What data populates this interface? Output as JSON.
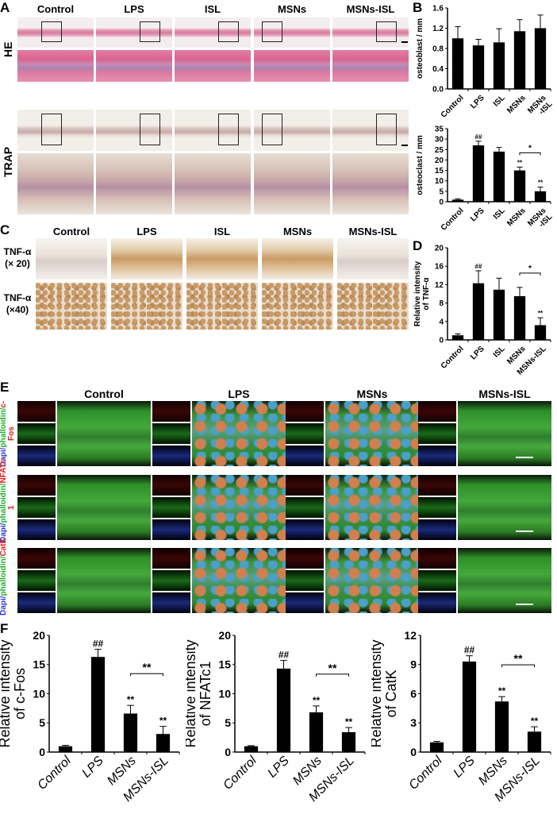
{
  "panels": {
    "A": "A",
    "B": "B",
    "C": "C",
    "D": "D",
    "E": "E",
    "F": "F"
  },
  "panel_a": {
    "columns": [
      "Control",
      "LPS",
      "ISL",
      "MSNs",
      "MSNs-ISL"
    ],
    "rows": [
      "HE",
      "TRAP"
    ]
  },
  "panel_c": {
    "columns": [
      "Control",
      "LPS",
      "ISL",
      "MSNs",
      "MSNs-ISL"
    ],
    "rows": [
      [
        "TNF-α",
        "(× 20)"
      ],
      [
        "TNF-α",
        "(×40)"
      ]
    ]
  },
  "panel_e": {
    "columns": [
      "Control",
      "LPS",
      "MSNs",
      "MSNs-ISL"
    ],
    "rows": [
      {
        "a": "Dapi/",
        "b": "phalloidin/",
        "c": "c-Fos"
      },
      {
        "a": "Dapi/",
        "b": "phalloidin/",
        "c": "NFATc-1"
      },
      {
        "a": "Dapi/",
        "b": "phalloidin/",
        "c": "CatK"
      }
    ]
  },
  "colors": {
    "bar": "#000000",
    "dapi": "#2a3bd6",
    "phalloidin": "#1fae2a",
    "marker": "#e0201c"
  },
  "chart_data": [
    {
      "id": "B1",
      "type": "bar",
      "ylabel": [
        "osteoblast / mm"
      ],
      "categories": [
        "Control",
        "LPS",
        "ISL",
        "MSNs",
        "MSNs\n-ISL"
      ],
      "values": [
        1.0,
        0.86,
        0.92,
        1.14,
        1.2
      ],
      "errors": [
        0.23,
        0.12,
        0.27,
        0.23,
        0.26
      ],
      "ylim": [
        0,
        1.6
      ],
      "ticks": [
        "0.0",
        "0.4",
        "0.8",
        "1.2",
        "1.6"
      ],
      "annotations": [
        "",
        "",
        "",
        "",
        ""
      ],
      "bracket": null
    },
    {
      "id": "B2",
      "type": "bar",
      "ylabel": [
        "osteoclast / mm"
      ],
      "categories": [
        "Control",
        "LPS",
        "ISL",
        "MSNs",
        "MSNs\n-ISL"
      ],
      "values": [
        1.0,
        27,
        24,
        15,
        5
      ],
      "errors": [
        0.4,
        2,
        2,
        1.6,
        2
      ],
      "ylim": [
        0,
        35
      ],
      "ticks": [
        "0",
        "5",
        "10",
        "15",
        "20",
        "25",
        "30",
        "35"
      ],
      "annotations": [
        "",
        "##",
        "",
        "**",
        "**"
      ],
      "bracket": {
        "from": 3,
        "to": 4,
        "label": "*"
      }
    },
    {
      "id": "D",
      "type": "bar",
      "ylabel": [
        "Relative intensity",
        "of TNF-α"
      ],
      "categories": [
        "Control",
        "LPS",
        "ISL",
        "MSNs",
        "MSNs-ISL"
      ],
      "values": [
        1.0,
        12.3,
        10.9,
        9.5,
        3.2
      ],
      "errors": [
        0.3,
        2.7,
        2.5,
        1.9,
        1.6
      ],
      "ylim": [
        0,
        20
      ],
      "ticks": [
        "0",
        "4",
        "8",
        "12",
        "16",
        "20"
      ],
      "annotations": [
        "",
        "##",
        "",
        "",
        "**"
      ],
      "bracket": {
        "from": 3,
        "to": 4,
        "label": "*"
      }
    },
    {
      "id": "F1",
      "type": "bar",
      "ylabel": [
        "Relative intensity",
        "of c-Fos"
      ],
      "categories": [
        "Control",
        "LPS",
        "MSNs",
        "MSNs-ISL"
      ],
      "values": [
        1.0,
        16.3,
        6.6,
        3.1
      ],
      "errors": [
        0.15,
        1.3,
        1.4,
        1.3
      ],
      "ylim": [
        0,
        20
      ],
      "ticks": [
        "0",
        "5",
        "10",
        "15",
        "20"
      ],
      "annotations": [
        "",
        "##",
        "**",
        "**"
      ],
      "bracket": {
        "from": 2,
        "to": 3,
        "label": "**"
      }
    },
    {
      "id": "F2",
      "type": "bar",
      "ylabel": [
        "Relative intensity",
        "of NFATc1"
      ],
      "categories": [
        "Control",
        "LPS",
        "MSNs",
        "MSNs-ISL"
      ],
      "values": [
        1.0,
        14.3,
        6.8,
        3.4
      ],
      "errors": [
        0.1,
        1.4,
        1.1,
        0.8
      ],
      "ylim": [
        0,
        20
      ],
      "ticks": [
        "0",
        "5",
        "10",
        "15",
        "20"
      ],
      "annotations": [
        "",
        "##",
        "**",
        "**"
      ],
      "bracket": {
        "from": 2,
        "to": 3,
        "label": "**"
      }
    },
    {
      "id": "F3",
      "type": "bar",
      "ylabel": [
        "Relative intensity",
        "of CatK"
      ],
      "categories": [
        "Control",
        "LPS",
        "MSNs",
        "MSNs-ISL"
      ],
      "values": [
        1.0,
        9.3,
        5.2,
        2.1
      ],
      "errors": [
        0.1,
        0.6,
        0.5,
        0.5
      ],
      "ylim": [
        0,
        12
      ],
      "ticks": [
        "0",
        "3",
        "6",
        "9",
        "12"
      ],
      "annotations": [
        "",
        "##",
        "**",
        "**"
      ],
      "bracket": {
        "from": 2,
        "to": 3,
        "label": "**"
      }
    }
  ]
}
